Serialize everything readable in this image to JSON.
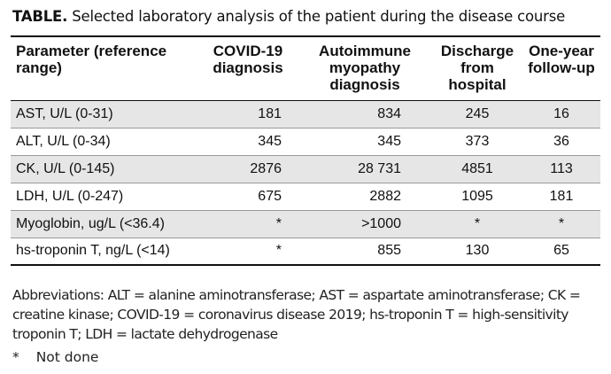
{
  "caption": {
    "lead": "TABLE.",
    "text": "Selected laboratory analysis of the patient during the disease course"
  },
  "table": {
    "headers": [
      [
        "Parameter (reference",
        "range)"
      ],
      [
        "COVID-19",
        "diagnosis"
      ],
      [
        "Autoimmune",
        "myopathy",
        "diagnosis"
      ],
      [
        "Discharge",
        "from",
        "hospital"
      ],
      [
        "One-year",
        "follow-up"
      ]
    ],
    "rows": [
      [
        "AST, U/L (0-31)",
        "181",
        "834",
        "245",
        "16"
      ],
      [
        "ALT, U/L (0-34)",
        "345",
        "345",
        "373",
        "36"
      ],
      [
        "CK, U/L (0-145)",
        "2876",
        "28 731",
        "4851",
        "113"
      ],
      [
        "LDH, U/L (0-247)",
        "675",
        "2882",
        "1095",
        "181"
      ],
      [
        "Myoglobin, ug/L (<36.4)",
        "*",
        ">1000",
        "*",
        "*"
      ],
      [
        "hs-troponin T, ng/L (<14)",
        "*",
        "855",
        "130",
        "65"
      ]
    ]
  },
  "footnotes": {
    "abbreviations": "Abbreviations: ALT = alanine aminotransferase; AST = aspartate aminotransferase; CK = creatine kinase; COVID-19 = coronavirus disease 2019; hs-troponin T = high-sensitivity troponin T; LDH = lactate dehydrogenase",
    "not_done_mark": "*",
    "not_done_text": "Not done"
  }
}
